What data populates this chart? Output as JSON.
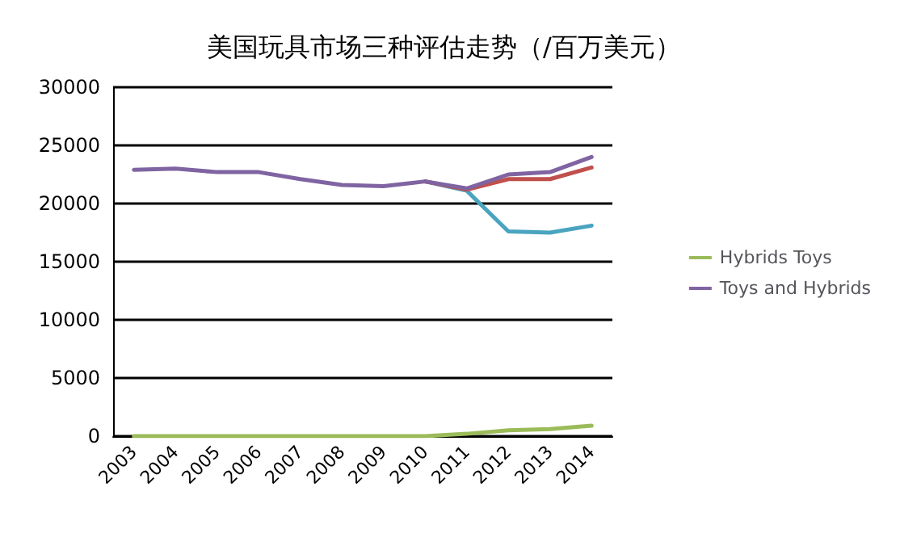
{
  "chart_data": {
    "type": "line",
    "title": "美国玩具市场三种评估走势（/百万美元）",
    "categories": [
      "2003",
      "2004",
      "2005",
      "2006",
      "2007",
      "2008",
      "2009",
      "2010",
      "2011",
      "2012",
      "2013",
      "2014"
    ],
    "series": [
      {
        "color": "#4aa4c0",
        "values": [
          null,
          null,
          null,
          null,
          null,
          null,
          null,
          21900,
          21100,
          17600,
          17500,
          18100
        ]
      },
      {
        "color": "#c0504d",
        "values": [
          null,
          null,
          null,
          null,
          null,
          null,
          null,
          21900,
          21200,
          22100,
          22100,
          23100
        ]
      },
      {
        "name": "Hybrids Toys",
        "color": "#9bbb59",
        "values": [
          0,
          0,
          0,
          0,
          0,
          0,
          0,
          0,
          200,
          500,
          600,
          900
        ]
      },
      {
        "name": "Toys and Hybrids",
        "color": "#8064a2",
        "values": [
          22900,
          23000,
          22700,
          22700,
          22100,
          21600,
          21500,
          21900,
          21300,
          22500,
          22700,
          24000
        ]
      }
    ],
    "ylim": [
      0,
      30000
    ],
    "yticks": [
      0,
      5000,
      10000,
      15000,
      20000,
      25000,
      30000
    ],
    "grid": "y",
    "legend": "right",
    "marker": "none",
    "line_style": "solid"
  }
}
